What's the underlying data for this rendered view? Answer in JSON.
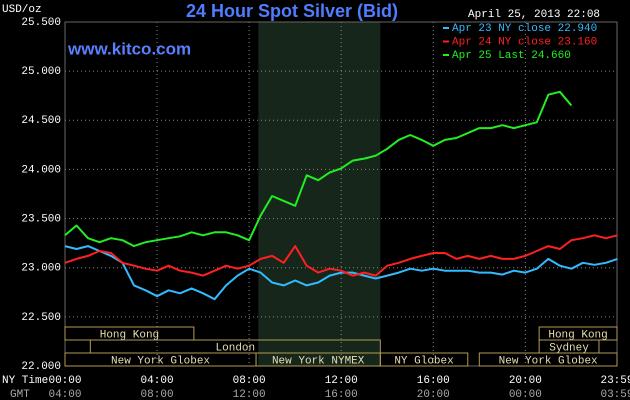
{
  "chart_data": {
    "type": "line",
    "title": "24 Hour Spot Silver (Bid)",
    "timestamp": "April 25, 2013 22:08",
    "unit_label": "USD/oz",
    "website": "www.kitco.com",
    "x_row_label": "NY Time",
    "x2_row_label": "GMT",
    "x": [
      0,
      0.5,
      1,
      1.5,
      2,
      2.5,
      3,
      3.5,
      4,
      4.5,
      5,
      5.5,
      6,
      6.5,
      7,
      7.5,
      8,
      8.5,
      9,
      9.5,
      10,
      10.5,
      11,
      11.5,
      12,
      12.5,
      13,
      13.5,
      14,
      14.5,
      15,
      15.5,
      16,
      16.5,
      17,
      17.5,
      18,
      18.5,
      19,
      19.5,
      20,
      20.5,
      21,
      21.5,
      22,
      22.5,
      23,
      23.5,
      24
    ],
    "series": [
      {
        "name": "Apr 23 NY close 22.940",
        "color": "#33bbff",
        "values": [
          23.22,
          23.19,
          23.22,
          23.17,
          23.12,
          23.05,
          22.82,
          22.77,
          22.71,
          22.77,
          22.74,
          22.79,
          22.74,
          22.68,
          22.82,
          22.92,
          22.99,
          22.95,
          22.85,
          22.82,
          22.87,
          22.82,
          22.85,
          22.92,
          22.95,
          22.95,
          22.92,
          22.89,
          22.92,
          22.95,
          22.99,
          22.97,
          22.99,
          22.97,
          22.97,
          22.97,
          22.95,
          22.95,
          22.93,
          22.97,
          22.95,
          22.99,
          23.09,
          23.02,
          22.99,
          23.05,
          23.03,
          23.05,
          23.09
        ]
      },
      {
        "name": "Apr 24 NY close 23.160",
        "color": "#ff2020",
        "values": [
          23.05,
          23.09,
          23.12,
          23.17,
          23.15,
          23.05,
          23.02,
          22.99,
          22.97,
          23.02,
          22.97,
          22.95,
          22.92,
          22.97,
          23.02,
          22.99,
          23.02,
          23.09,
          23.12,
          23.05,
          23.22,
          23.02,
          22.95,
          22.99,
          22.97,
          22.92,
          22.95,
          22.92,
          23.02,
          23.05,
          23.09,
          23.12,
          23.15,
          23.15,
          23.09,
          23.12,
          23.09,
          23.12,
          23.09,
          23.09,
          23.12,
          23.17,
          23.22,
          23.19,
          23.28,
          23.3,
          23.33,
          23.3,
          23.33
        ]
      },
      {
        "name": "Apr 25 Last 24.660",
        "color": "#22ee22",
        "values": [
          23.33,
          23.43,
          23.3,
          23.26,
          23.3,
          23.28,
          23.22,
          23.26,
          23.28,
          23.3,
          23.32,
          23.36,
          23.33,
          23.36,
          23.36,
          23.33,
          23.28,
          23.53,
          23.73,
          23.68,
          23.63,
          23.94,
          23.89,
          23.97,
          24.01,
          24.09,
          24.11,
          24.14,
          24.21,
          24.3,
          24.35,
          24.3,
          24.24,
          24.3,
          24.32,
          24.37,
          24.42,
          24.42,
          24.45,
          24.42,
          24.45,
          24.48,
          24.76,
          24.79,
          24.65,
          null,
          null,
          null,
          null
        ]
      }
    ],
    "xlim": [
      0,
      23.983
    ],
    "xticks": [
      {
        "value": 0,
        "label": "00:00"
      },
      {
        "value": 4,
        "label": "04:00"
      },
      {
        "value": 8,
        "label": "08:00"
      },
      {
        "value": 12,
        "label": "12:00"
      },
      {
        "value": 16,
        "label": "16:00"
      },
      {
        "value": 20,
        "label": "20:00"
      },
      {
        "value": 23.983,
        "label": "23:59"
      }
    ],
    "x2_tick_labels": [
      "04:00",
      "08:00",
      "12:00",
      "16:00",
      "20:00",
      "00:00",
      "03:59"
    ],
    "ylim": [
      22,
      25.5
    ],
    "yticks": [
      {
        "value": 22,
        "label": "22.000"
      },
      {
        "value": 22.5,
        "label": "22.500"
      },
      {
        "value": 23,
        "label": "23.000"
      },
      {
        "value": 23.5,
        "label": "23.500"
      },
      {
        "value": 24,
        "label": "24.000"
      },
      {
        "value": 24.5,
        "label": "24.500"
      },
      {
        "value": 25,
        "label": "25.000"
      },
      {
        "value": 25.5,
        "label": "25.500"
      }
    ],
    "grid": true,
    "highlight": [
      8.4,
      13.7
    ],
    "sessions": [
      {
        "label": "Hong Kong",
        "start": 0,
        "end": 5.6,
        "row": 0
      },
      {
        "label": "Hong Kong",
        "start": 20.6,
        "end": 23.983,
        "row": 0
      },
      {
        "label": "London",
        "start": 1.1,
        "end": 13.7,
        "row": 1
      },
      {
        "label": "Sydney",
        "start": 20.6,
        "end": 23.2,
        "row": 1
      },
      {
        "label": "New York Globex",
        "start": 0,
        "end": 8.3,
        "row": 2
      },
      {
        "label": "New York NYMEX",
        "start": 8.3,
        "end": 13.7,
        "row": 2
      },
      {
        "label": "NY Globex",
        "start": 13.7,
        "end": 17.5,
        "row": 2
      },
      {
        "label": "New York Globex",
        "start": 18,
        "end": 23.983,
        "row": 2
      }
    ]
  }
}
